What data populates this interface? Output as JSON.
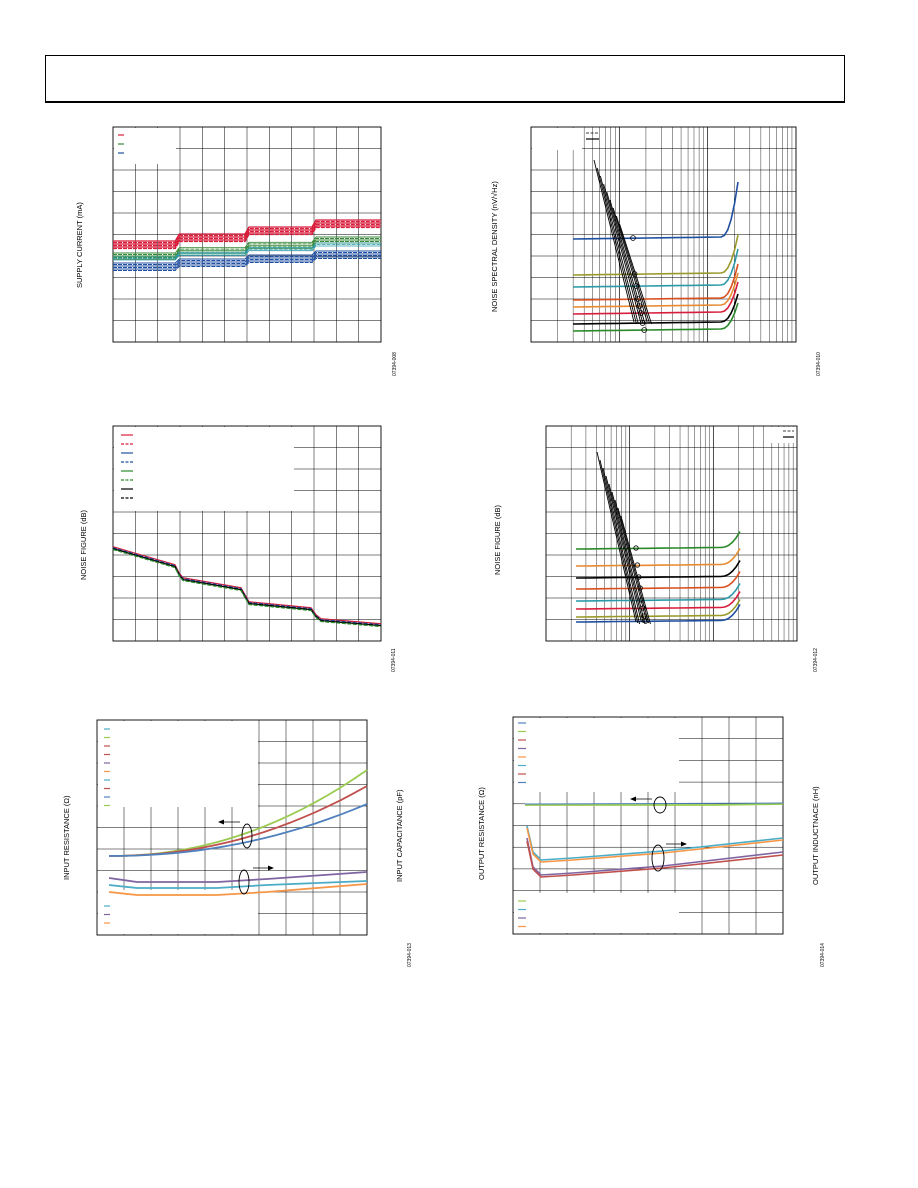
{
  "chart_data": [
    {
      "type": "line",
      "ylabel": "SUPPLY CURRENT (mA)",
      "figure_id": "07394-008",
      "series_colors": [
        "#d81e3c",
        "#3a8a3a",
        "#1f4fa0"
      ],
      "steps_at": [
        0.24,
        0.5,
        0.75
      ],
      "legend": [
        "",
        "",
        ""
      ]
    },
    {
      "type": "line",
      "ylabel": "NOISE SPECTRAL DENSITY (nV/√Hz)",
      "figure_id": "07394-010",
      "series_colors": [
        "#1f4fa0",
        "#9a9a2a",
        "#2a9aa8",
        "#d8501e",
        "#e88a30",
        "#d81e3c",
        "#000000",
        "#2a8a2a"
      ],
      "legend": [
        "",
        ""
      ]
    },
    {
      "type": "line",
      "ylabel": "NOISE FIGURE (dB)",
      "figure_id": "07394-011",
      "series_colors": [
        "#d81e3c",
        "#d81e3c",
        "#1f4fa0",
        "#1f4fa0",
        "#2a8a2a",
        "#2a8a2a",
        "#000000",
        "#000000"
      ],
      "legend": [
        "",
        "",
        "",
        "",
        "",
        "",
        "",
        ""
      ]
    },
    {
      "type": "line",
      "ylabel": "NOISE FIGURE (dB)",
      "figure_id": "07394-012",
      "series_colors": [
        "#2a8a2a",
        "#e88a30",
        "#000000",
        "#d8501e",
        "#2a9aa8",
        "#d81e3c",
        "#9a9a2a",
        "#1f4fa0"
      ],
      "legend": [
        "",
        ""
      ]
    },
    {
      "type": "line",
      "ylabel": "INPUT RESISTANCE (Ω)",
      "y2label": "INPUT CAPACITANCE (pF)",
      "figure_id": "07394-013",
      "series_colors": [
        "#9acb50",
        "#c0504d",
        "#4f81bd",
        "#8064a2",
        "#4bacc6",
        "#f79646"
      ],
      "legend": [
        "",
        "",
        "",
        "",
        "",
        "",
        "",
        "",
        "",
        ""
      ]
    },
    {
      "type": "line",
      "ylabel": "OUTPUT RESISTANCE (Ω)",
      "y2label": "OUTPUT INDUCTNACE (nH)",
      "figure_id": "07394-014",
      "series_colors": [
        "#9acb50",
        "#4f81bd",
        "#c0504d",
        "#8064a2",
        "#4bacc6",
        "#f79646"
      ],
      "legend": [
        "",
        "",
        "",
        "",
        "",
        "",
        ""
      ]
    }
  ]
}
